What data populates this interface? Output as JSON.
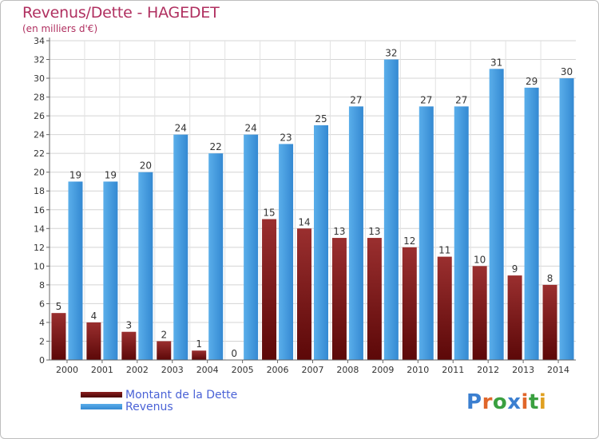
{
  "title": "Revenus/Dette - HAGEDET",
  "subtitle": "(en milliers d'€)",
  "colors": {
    "debt": "#7b1a1a",
    "revenue": "#3d95dc",
    "title": "#b03060",
    "legend_text": "#4a62d6"
  },
  "legend": [
    {
      "label": "Montant de la Dette",
      "color": "#6b0f0f"
    },
    {
      "label": "Revenus",
      "color": "#3d95dc"
    }
  ],
  "logo": {
    "text": "Proxiti"
  },
  "chart_data": {
    "type": "bar",
    "title": "Revenus/Dette - HAGEDET",
    "subtitle": "(en milliers d'€)",
    "categories": [
      "2000",
      "2001",
      "2002",
      "2003",
      "2004",
      "2005",
      "2006",
      "2007",
      "2008",
      "2009",
      "2010",
      "2011",
      "2012",
      "2013",
      "2014"
    ],
    "series": [
      {
        "name": "Montant de la Dette",
        "values": [
          5,
          4,
          3,
          2,
          1,
          0,
          15,
          14,
          13,
          13,
          12,
          11,
          10,
          9,
          8
        ]
      },
      {
        "name": "Revenus",
        "values": [
          19,
          19,
          20,
          24,
          22,
          24,
          23,
          25,
          27,
          32,
          27,
          27,
          31,
          29,
          30
        ]
      }
    ],
    "ylim": [
      0,
      34
    ],
    "yticks": [
      0,
      2,
      4,
      6,
      8,
      10,
      12,
      14,
      16,
      18,
      20,
      22,
      24,
      26,
      28,
      30,
      32,
      34
    ],
    "grid": true,
    "legend_position": "bottom-left"
  }
}
